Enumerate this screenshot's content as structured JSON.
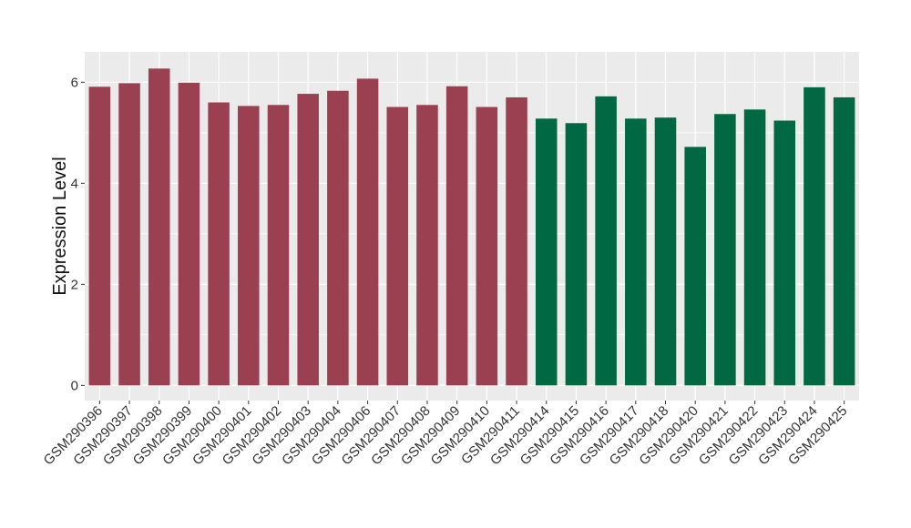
{
  "chart_data": {
    "type": "bar",
    "title": "",
    "xlabel": "",
    "ylabel": "Expression Level",
    "ylim": [
      -0.3,
      6.6
    ],
    "yticks": [
      0,
      2,
      4,
      6
    ],
    "grid": true,
    "colors": {
      "group_a": "#9B4050",
      "group_b": "#006843",
      "panel_bg": "#EBEBEB",
      "grid": "#FFFFFF"
    },
    "categories": [
      "GSM290396",
      "GSM290397",
      "GSM290398",
      "GSM290399",
      "GSM290400",
      "GSM290401",
      "GSM290402",
      "GSM290403",
      "GSM290404",
      "GSM290406",
      "GSM290407",
      "GSM290408",
      "GSM290409",
      "GSM290410",
      "GSM290411",
      "GSM290414",
      "GSM290415",
      "GSM290416",
      "GSM290417",
      "GSM290418",
      "GSM290420",
      "GSM290421",
      "GSM290422",
      "GSM290423",
      "GSM290424",
      "GSM290425"
    ],
    "values": [
      5.91,
      5.98,
      6.27,
      5.99,
      5.6,
      5.53,
      5.55,
      5.77,
      5.83,
      6.07,
      5.51,
      5.55,
      5.92,
      5.51,
      5.7,
      5.28,
      5.19,
      5.72,
      5.28,
      5.3,
      4.72,
      5.37,
      5.46,
      5.24,
      5.9,
      5.7
    ],
    "groups": [
      "a",
      "a",
      "a",
      "a",
      "a",
      "a",
      "a",
      "a",
      "a",
      "a",
      "a",
      "a",
      "a",
      "a",
      "a",
      "b",
      "b",
      "b",
      "b",
      "b",
      "b",
      "b",
      "b",
      "b",
      "b",
      "b"
    ]
  }
}
